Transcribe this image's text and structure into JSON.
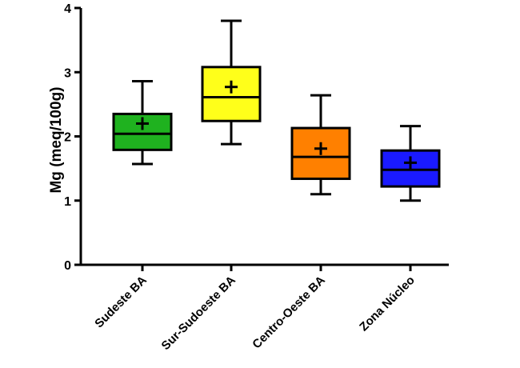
{
  "chart_data": {
    "type": "box",
    "ylabel": "Mg (meq/100g)",
    "ylim": [
      0,
      4
    ],
    "yticks": [
      "0",
      "1",
      "2",
      "3",
      "4"
    ],
    "grid": false,
    "legend": "none",
    "categories": [
      "Sudeste BA",
      "Sur-Sudoeste BA",
      "Centro-Oeste BA",
      "Zona Núcleo"
    ],
    "boxes": [
      {
        "name": "Sudeste BA",
        "min": 1.57,
        "q1": 1.79,
        "median": 2.04,
        "q3": 2.35,
        "max": 2.86,
        "mean": 2.2,
        "color": "#1fb21f"
      },
      {
        "name": "Sur-Sudoeste BA",
        "min": 1.88,
        "q1": 2.24,
        "median": 2.61,
        "q3": 3.08,
        "max": 3.8,
        "mean": 2.77,
        "color": "#ffff1a"
      },
      {
        "name": "Centro-Oeste BA",
        "min": 1.1,
        "q1": 1.34,
        "median": 1.68,
        "q3": 2.13,
        "max": 2.64,
        "mean": 1.81,
        "color": "#ff8000"
      },
      {
        "name": "Zona Núcleo",
        "min": 1.0,
        "q1": 1.22,
        "median": 1.48,
        "q3": 1.78,
        "max": 2.16,
        "mean": 1.59,
        "color": "#1a1aff"
      }
    ]
  }
}
